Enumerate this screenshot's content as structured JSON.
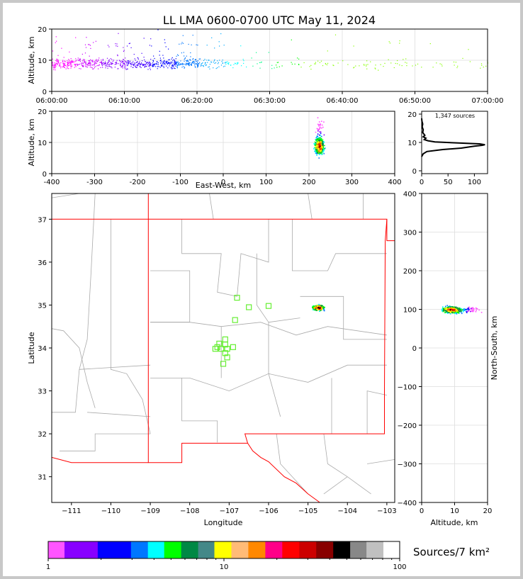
{
  "chart_data": [
    {
      "id": "time_altitude",
      "type": "scatter",
      "title": "LL LMA 0600-0700 UTC May 11, 2024",
      "xlabel": "",
      "ylabel": "Altitude, km",
      "x_ticks": [
        "06:00:00",
        "06:10:00",
        "06:20:00",
        "06:30:00",
        "06:40:00",
        "06:50:00",
        "07:00:00"
      ],
      "xlim_minutes": [
        0,
        60
      ],
      "ylim": [
        0,
        20
      ],
      "y_ticks": [
        0,
        10,
        20
      ],
      "grid": true
    },
    {
      "id": "eastwest_altitude",
      "type": "scatter",
      "xlabel": "East-West, km",
      "ylabel": "Altitude, km",
      "xlim": [
        -400,
        400
      ],
      "x_ticks": [
        -400,
        -300,
        -200,
        -100,
        0,
        100,
        200,
        300,
        400
      ],
      "ylim": [
        0,
        20
      ],
      "y_ticks": [
        0,
        10,
        20
      ],
      "grid": true
    },
    {
      "id": "altitude_histogram",
      "type": "line",
      "annotation": "1,347 sources",
      "xlim": [
        0,
        125
      ],
      "x_ticks": [
        0,
        50,
        100
      ],
      "ylim": [
        -1,
        21
      ],
      "y_ticks": [
        0,
        10,
        20
      ],
      "profile": [
        [
          0,
          5
        ],
        [
          3,
          6
        ],
        [
          10,
          6.8
        ],
        [
          40,
          7.5
        ],
        [
          75,
          8
        ],
        [
          100,
          8.7
        ],
        [
          115,
          9
        ],
        [
          120,
          9.2
        ],
        [
          110,
          9.5
        ],
        [
          70,
          9.8
        ],
        [
          25,
          10.2
        ],
        [
          12,
          10.6
        ],
        [
          5,
          11
        ],
        [
          8,
          11.5
        ],
        [
          3,
          12
        ],
        [
          6,
          12.5
        ],
        [
          2,
          13.5
        ],
        [
          3,
          14.5
        ],
        [
          1,
          15.5
        ],
        [
          2,
          16.5
        ],
        [
          0.5,
          17.5
        ],
        [
          0,
          18.5
        ]
      ]
    },
    {
      "id": "plan_view",
      "type": "scatter",
      "xlabel": "Longitude",
      "ylabel": "Latitude",
      "xlim": [
        -111.5,
        -102.8
      ],
      "x_ticks": [
        -111,
        -110,
        -109,
        -108,
        -107,
        -106,
        -105,
        -104,
        -103
      ],
      "ylim": [
        30.4,
        37.6
      ],
      "y_ticks": [
        31,
        32,
        33,
        34,
        35,
        36,
        37
      ],
      "stations": [
        [
          -107.1,
          34.2
        ],
        [
          -107.1,
          34.08
        ],
        [
          -107.25,
          34.1
        ],
        [
          -107.2,
          33.98
        ],
        [
          -107.35,
          33.98
        ],
        [
          -107.05,
          33.98
        ],
        [
          -106.9,
          34.02
        ],
        [
          -107.3,
          34.02
        ],
        [
          -107.1,
          33.88
        ],
        [
          -107.05,
          33.78
        ],
        [
          -107.15,
          33.63
        ],
        [
          -106.85,
          34.65
        ],
        [
          -106.8,
          35.17
        ],
        [
          -106.5,
          34.95
        ],
        [
          -106.0,
          34.98
        ]
      ],
      "source_cluster": {
        "center_lon": -104.75,
        "center_lat": 34.95
      }
    },
    {
      "id": "altitude_northsouth",
      "type": "scatter",
      "xlabel": "Altitude, km",
      "ylabel": "North-South, km",
      "xlim": [
        0,
        20
      ],
      "x_ticks": [
        0,
        10,
        20
      ],
      "ylim": [
        -400,
        400
      ],
      "y_ticks": [
        400,
        300,
        200,
        100,
        0,
        -100,
        -200,
        -300,
        -400
      ],
      "grid": true
    },
    {
      "id": "colorbar",
      "type": "colorbar",
      "label": "Sources/7 km²",
      "ticks": [
        "1",
        "10",
        "100"
      ],
      "colors": [
        "#ff55ff",
        "#8800ff",
        "#0000ff",
        "#0077ff",
        "#00ffff",
        "#00ff00",
        "#008844",
        "#448888",
        "#ffff00",
        "#ffbb77",
        "#ff8800",
        "#ff0088",
        "#ff0000",
        "#cc0000",
        "#880000",
        "#000000",
        "#888888",
        "#c0c0c0",
        "#ffffff"
      ]
    }
  ]
}
